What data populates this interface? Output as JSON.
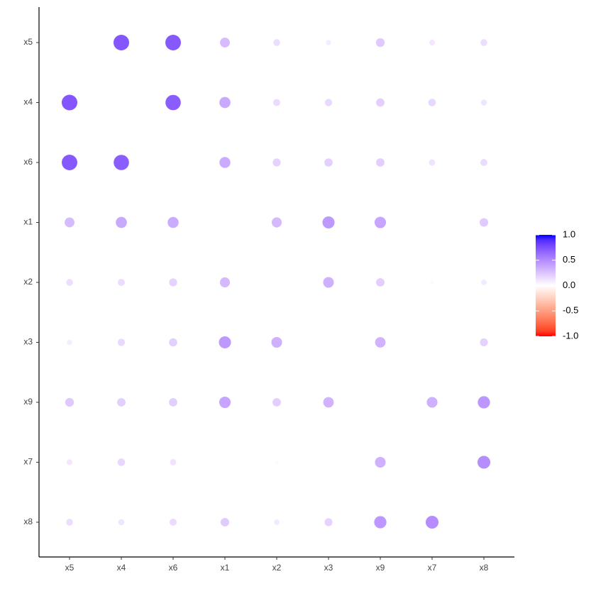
{
  "chart_data": {
    "type": "correlation",
    "x": [
      "x5",
      "x4",
      "x6",
      "x1",
      "x2",
      "x3",
      "x9",
      "x7",
      "x8"
    ],
    "y": [
      "x5",
      "x4",
      "x6",
      "x1",
      "x2",
      "x3",
      "x9",
      "x7",
      "x8"
    ],
    "values": [
      [
        null,
        0.73,
        0.72,
        0.29,
        0.14,
        0.08,
        0.23,
        0.1,
        0.14
      ],
      [
        0.73,
        null,
        0.7,
        0.37,
        0.15,
        0.16,
        0.21,
        0.17,
        0.11
      ],
      [
        0.72,
        0.7,
        null,
        0.36,
        0.19,
        0.2,
        0.21,
        0.12,
        0.15
      ],
      [
        0.29,
        0.37,
        0.36,
        null,
        0.3,
        0.44,
        0.39,
        0.0,
        0.22
      ],
      [
        0.14,
        0.15,
        0.19,
        0.3,
        null,
        0.34,
        0.21,
        0.03,
        0.09
      ],
      [
        0.08,
        0.16,
        0.2,
        0.44,
        0.34,
        null,
        0.33,
        0.0,
        0.19
      ],
      [
        0.23,
        0.21,
        0.21,
        0.39,
        0.21,
        0.33,
        null,
        0.34,
        0.45
      ],
      [
        0.1,
        0.17,
        0.12,
        0.0,
        0.03,
        0.0,
        0.34,
        null,
        0.49
      ],
      [
        0.14,
        0.11,
        0.15,
        0.22,
        0.09,
        0.19,
        0.45,
        0.49,
        null
      ]
    ],
    "colors": {
      "low": "#FF0000",
      "mid": "#FFFFFF",
      "high": "#0000FF"
    },
    "legend_lim": [
      -1,
      1
    ],
    "legend_ticks": [
      {
        "value": 1,
        "label": "1.0"
      },
      {
        "value": 0.5,
        "label": "0.5"
      },
      {
        "value": 0,
        "label": "0.0"
      },
      {
        "value": -0.5,
        "label": "-0.5"
      },
      {
        "value": -1,
        "label": "-1.0"
      }
    ],
    "legend_position": "right"
  }
}
